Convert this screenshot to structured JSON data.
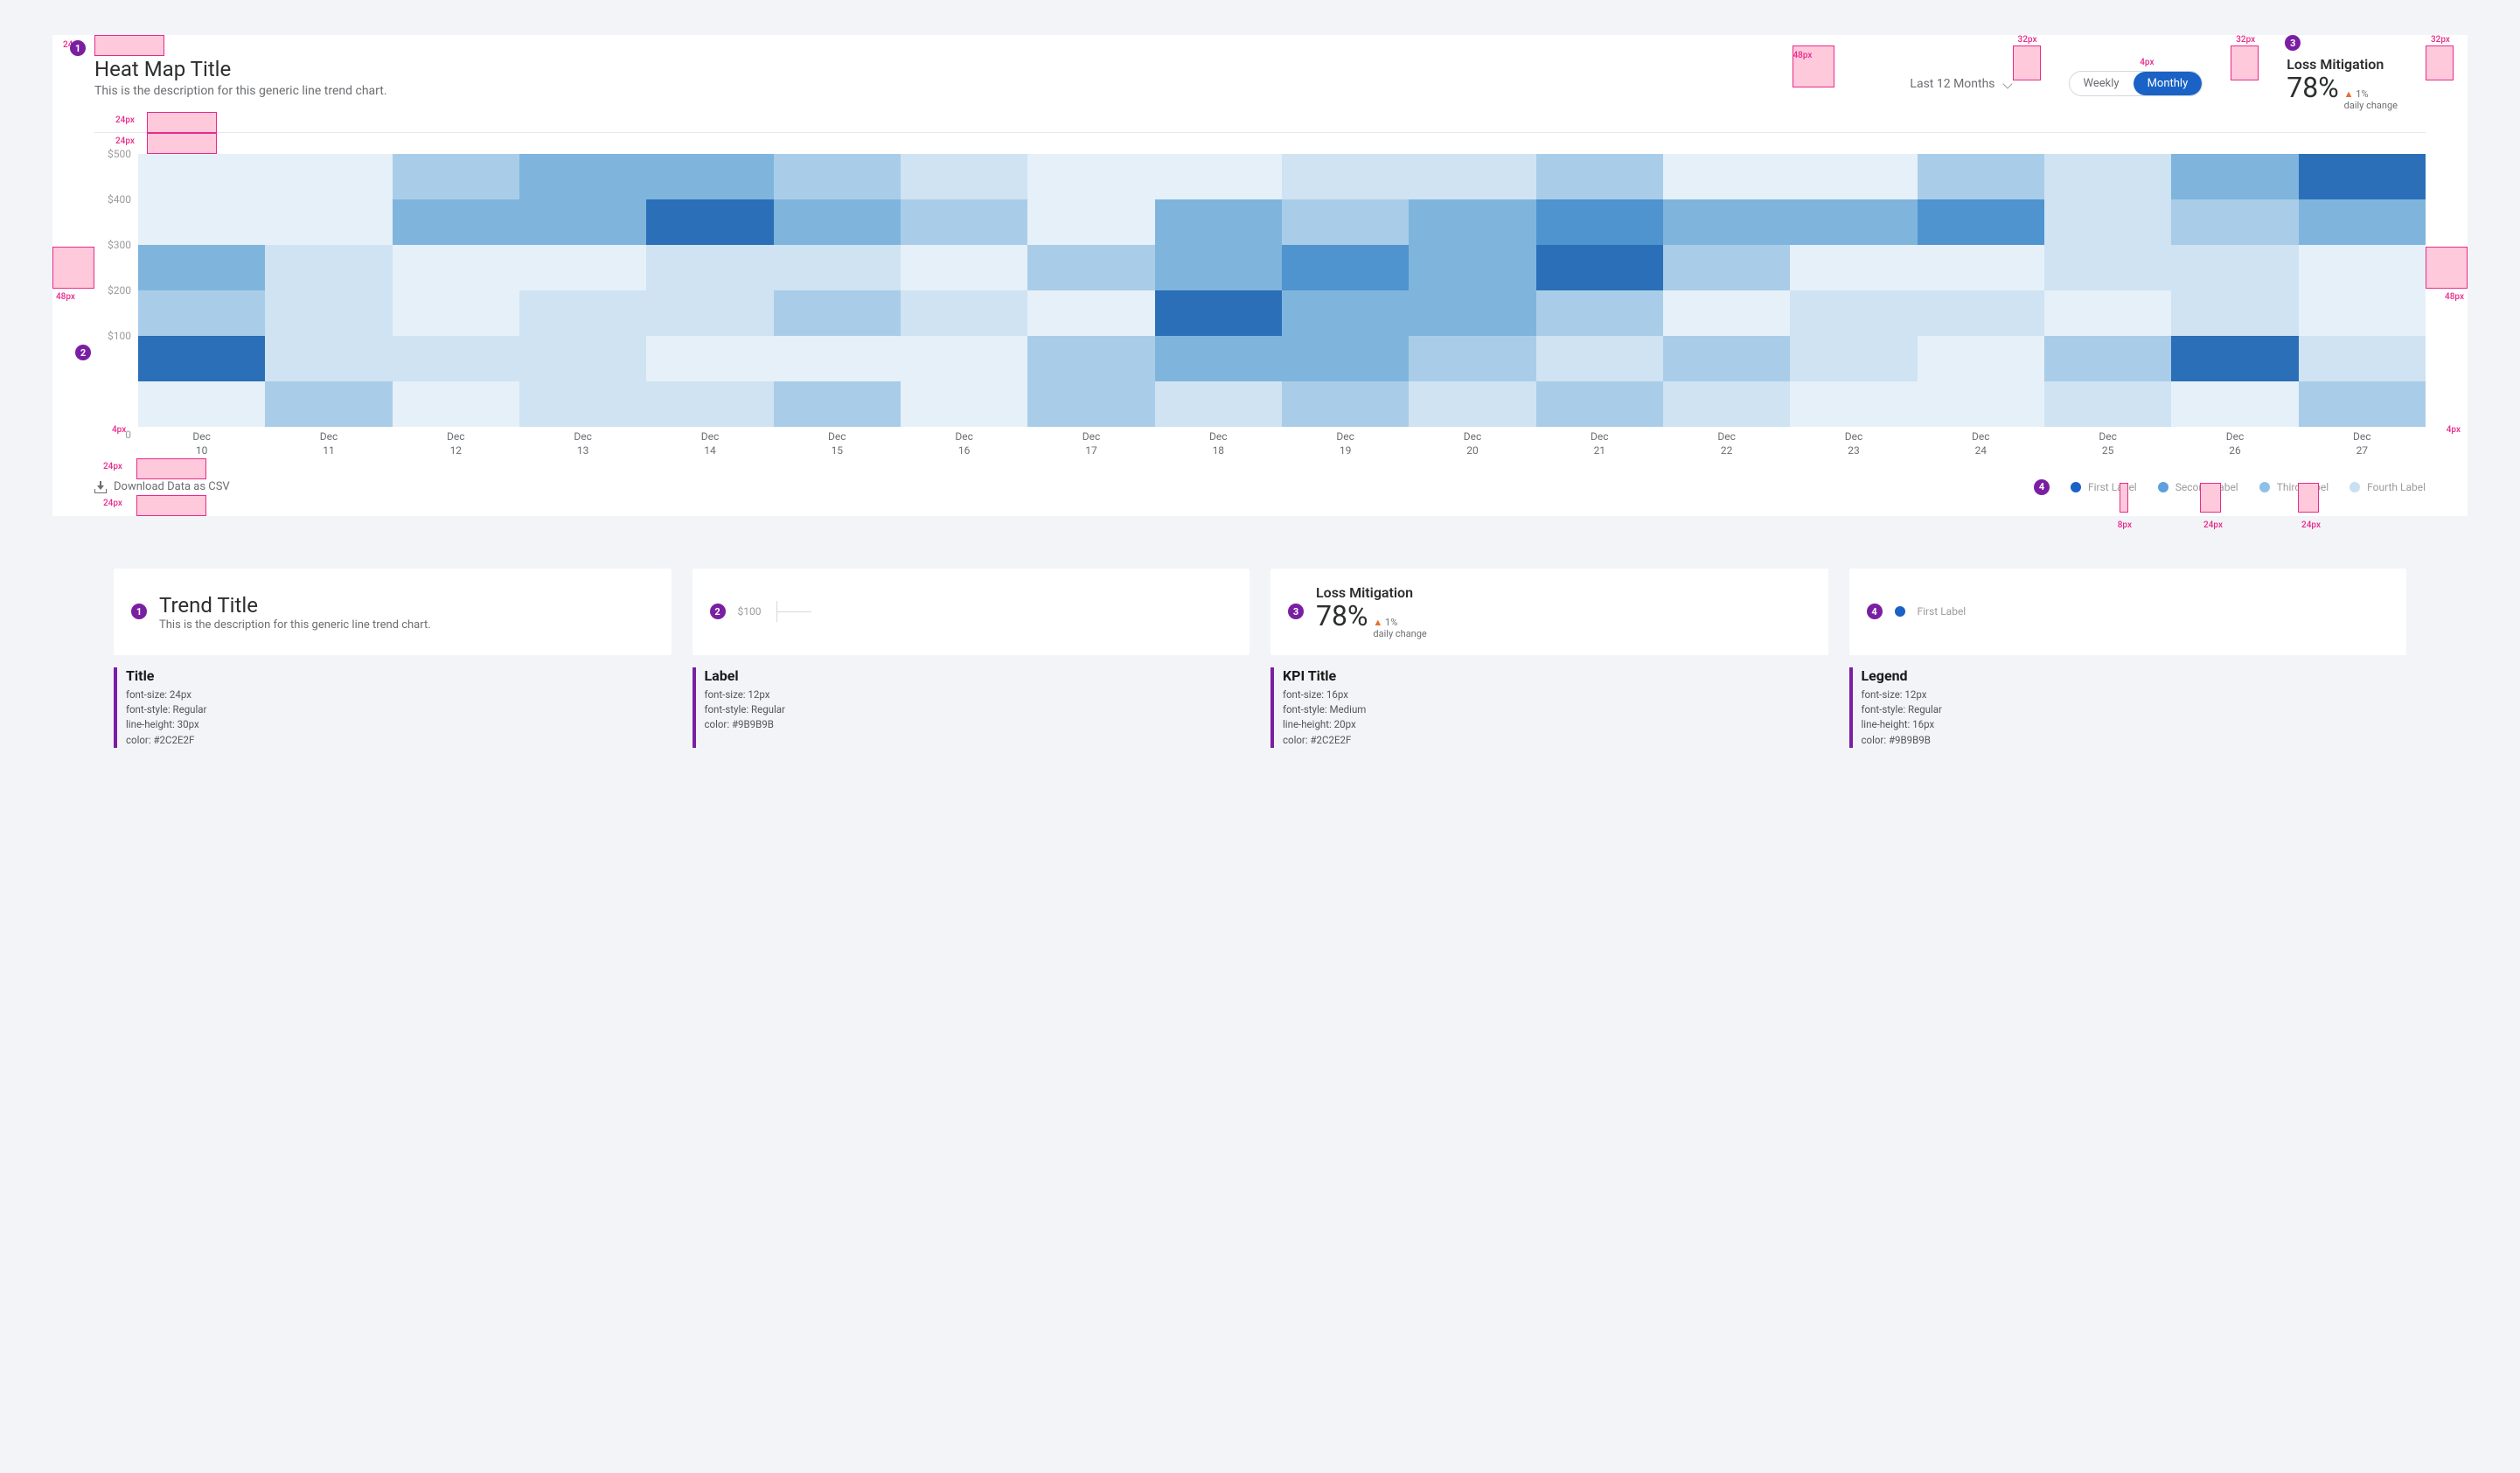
{
  "annotation": {
    "color": "#e82a8a",
    "fill": "#ffc9dc",
    "badge_color": "#7a1fa2"
  },
  "header": {
    "title": "Heat Map Title",
    "subtitle": "This is the description for this generic line trend chart.",
    "range_label": "Last 12 Months",
    "toggle": {
      "weekly": "Weekly",
      "monthly": "Monthly",
      "active": "Monthly"
    },
    "kpi": {
      "title": "Loss Mitigation",
      "value": "78%",
      "change_symbol": "▲",
      "change_value": "1%",
      "change_label": "daily change"
    }
  },
  "spacing_labels": {
    "s24": "24px",
    "s32": "32px",
    "s48": "48px",
    "s4": "4px",
    "s8": "8px"
  },
  "heatmap": {
    "type": "heatmap",
    "palette": {
      "1": "#e6f0f8",
      "2": "#cfe3f2",
      "3": "#a9cde8",
      "4": "#7fb5dd",
      "5": "#4f93cf",
      "6": "#2a6fb8"
    },
    "y_labels": [
      "$500",
      "$400",
      "$300",
      "$200",
      "$100"
    ],
    "y_zero": "0",
    "x_labels": [
      [
        "Dec",
        "10"
      ],
      [
        "Dec",
        "11"
      ],
      [
        "Dec",
        "12"
      ],
      [
        "Dec",
        "13"
      ],
      [
        "Dec",
        "14"
      ],
      [
        "Dec",
        "15"
      ],
      [
        "Dec",
        "16"
      ],
      [
        "Dec",
        "17"
      ],
      [
        "Dec",
        "18"
      ],
      [
        "Dec",
        "19"
      ],
      [
        "Dec",
        "20"
      ],
      [
        "Dec",
        "21"
      ],
      [
        "Dec",
        "22"
      ],
      [
        "Dec",
        "23"
      ],
      [
        "Dec",
        "24"
      ],
      [
        "Dec",
        "25"
      ],
      [
        "Dec",
        "26"
      ],
      [
        "Dec",
        "27"
      ]
    ],
    "rows": [
      [
        1,
        1,
        3,
        4,
        4,
        3,
        2,
        1,
        1,
        2,
        2,
        3,
        1,
        1,
        3,
        2,
        4,
        6
      ],
      [
        1,
        1,
        4,
        4,
        6,
        4,
        3,
        1,
        4,
        3,
        4,
        5,
        4,
        4,
        5,
        2,
        3,
        4
      ],
      [
        4,
        2,
        1,
        1,
        2,
        2,
        1,
        3,
        4,
        5,
        4,
        6,
        3,
        1,
        1,
        2,
        2,
        1
      ],
      [
        3,
        2,
        1,
        2,
        2,
        3,
        2,
        1,
        6,
        4,
        4,
        3,
        1,
        2,
        2,
        1,
        2,
        1
      ],
      [
        6,
        2,
        2,
        2,
        1,
        1,
        1,
        3,
        4,
        4,
        3,
        2,
        3,
        2,
        1,
        3,
        6,
        2
      ],
      [
        1,
        3,
        1,
        2,
        2,
        3,
        1,
        3,
        2,
        3,
        2,
        3,
        2,
        1,
        1,
        2,
        1,
        3
      ]
    ]
  },
  "footer": {
    "download": "Download Data as CSV",
    "legend": [
      {
        "label": "First Label",
        "color": "#1a62c6"
      },
      {
        "label": "Second Label",
        "color": "#5ca0dd"
      },
      {
        "label": "Third Label",
        "color": "#8fc1e8"
      },
      {
        "label": "Fourth Label",
        "color": "#c8e0f2"
      }
    ]
  },
  "specs": {
    "panel1": {
      "title": "Trend Title",
      "subtitle": "This is the description for this generic line trend chart."
    },
    "panel2": {
      "label": "$100"
    },
    "panel3": {
      "title": "Loss Mitigation",
      "value": "78%",
      "change_symbol": "▲",
      "change_value": "1%",
      "change_label": "daily change"
    },
    "panel4": {
      "label": "First Label",
      "color": "#1a62c6"
    },
    "detail1": {
      "heading": "Title",
      "lines": [
        "font-size: 24px",
        "font-style: Regular",
        "line-height: 30px",
        "color: #2C2E2F"
      ]
    },
    "detail2": {
      "heading": "Label",
      "lines": [
        "font-size: 12px",
        "font-style: Regular",
        "color: #9B9B9B"
      ]
    },
    "detail3": {
      "heading": "KPI Title",
      "lines": [
        "font-size: 16px",
        "font-style: Medium",
        "line-height: 20px",
        "color: #2C2E2F"
      ]
    },
    "detail4": {
      "heading": "Legend",
      "lines": [
        "font-size: 12px",
        "font-style: Regular",
        "line-height: 16px",
        "color: #9B9B9B"
      ]
    }
  }
}
